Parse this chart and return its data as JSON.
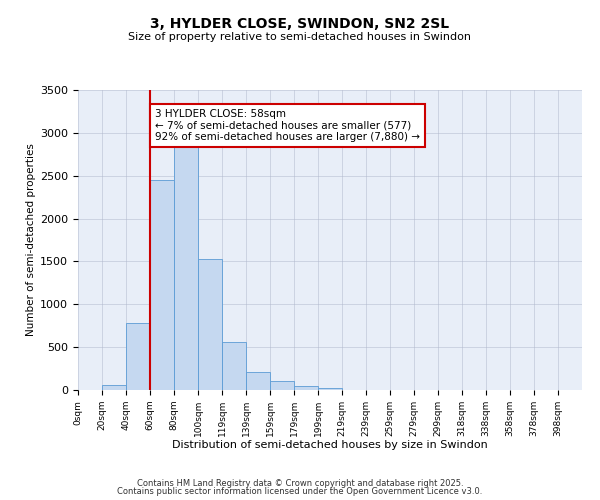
{
  "title_line1": "3, HYLDER CLOSE, SWINDON, SN2 2SL",
  "title_line2": "Size of property relative to semi-detached houses in Swindon",
  "bar_labels": [
    "0sqm",
    "20sqm",
    "40sqm",
    "60sqm",
    "80sqm",
    "100sqm",
    "119sqm",
    "139sqm",
    "159sqm",
    "179sqm",
    "199sqm",
    "219sqm",
    "239sqm",
    "259sqm",
    "279sqm",
    "299sqm",
    "318sqm",
    "338sqm",
    "358sqm",
    "378sqm",
    "398sqm"
  ],
  "bar_values": [
    0,
    55,
    780,
    2450,
    2880,
    1530,
    555,
    205,
    100,
    45,
    20,
    5,
    0,
    5,
    0,
    0,
    0,
    0,
    5,
    0,
    0
  ],
  "bar_color": "#c5d8f0",
  "bar_edge_color": "#5b9bd5",
  "xlabel": "Distribution of semi-detached houses by size in Swindon",
  "ylabel": "Number of semi-detached properties",
  "ylim": [
    0,
    3500
  ],
  "yticks": [
    0,
    500,
    1000,
    1500,
    2000,
    2500,
    3000,
    3500
  ],
  "vline_x": 3,
  "vline_color": "#cc0000",
  "annotation_title": "3 HYLDER CLOSE: 58sqm",
  "annotation_line1": "← 7% of semi-detached houses are smaller (577)",
  "annotation_line2": "92% of semi-detached houses are larger (7,880) →",
  "annotation_box_color": "#ffffff",
  "annotation_box_edge": "#cc0000",
  "footnote1": "Contains HM Land Registry data © Crown copyright and database right 2025.",
  "footnote2": "Contains public sector information licensed under the Open Government Licence v3.0.",
  "background_color": "#ffffff",
  "plot_bg_color": "#e8eef8"
}
